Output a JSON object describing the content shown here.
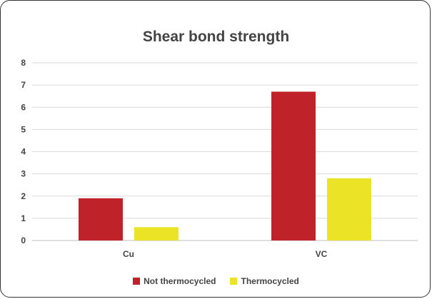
{
  "chart_data": {
    "type": "bar",
    "title": "Shear bond strength",
    "xlabel": "",
    "ylabel": "",
    "categories": [
      "Cu",
      "VC"
    ],
    "series": [
      {
        "name": "Not thermocycled",
        "color": "#c0222a",
        "values": [
          1.9,
          6.7
        ]
      },
      {
        "name": "Thermocycled",
        "color": "#ebe426",
        "values": [
          0.6,
          2.8
        ]
      }
    ],
    "ylim": [
      0,
      8
    ],
    "yticks": [
      0,
      1,
      2,
      3,
      4,
      5,
      6,
      7,
      8
    ],
    "grid": true,
    "legend_position": "bottom"
  }
}
